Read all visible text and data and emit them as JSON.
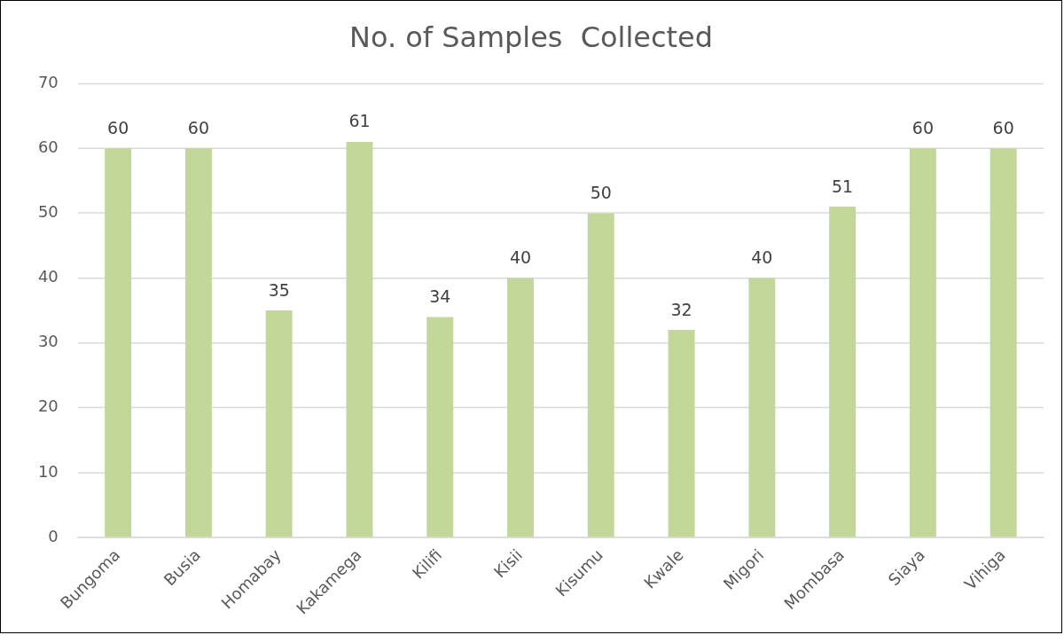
{
  "chart_data": {
    "type": "bar",
    "title": "No. of Samples  Collected",
    "categories": [
      "Bungoma",
      "Busia",
      "Homabay",
      "Kakamega",
      "Kilifi",
      "Kisii",
      "Kisumu",
      "Kwale",
      "Migori",
      "Mombasa",
      "Siaya",
      "Vihiga"
    ],
    "values": [
      60,
      60,
      35,
      61,
      34,
      40,
      50,
      32,
      40,
      51,
      60,
      60
    ],
    "color": "#c4d79b",
    "ylim": [
      0,
      70
    ],
    "yticks": [
      0,
      10,
      20,
      30,
      40,
      50,
      60,
      70
    ],
    "grid": "y",
    "legend": false,
    "data_labels": true
  }
}
